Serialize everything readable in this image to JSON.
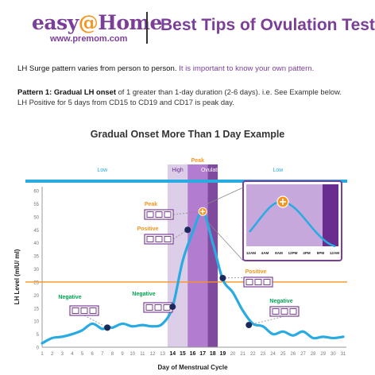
{
  "header": {
    "logo_text_a": "easy",
    "logo_text_at": "@",
    "logo_text_b": "Home",
    "logo_url": "www.premom.com",
    "title": "Best Tips of Ovulation Test"
  },
  "intro": {
    "text": "LH Surge pattern varies from person to person. ",
    "highlight": "It is important to know your own pattern."
  },
  "pattern": {
    "label": "Pattern 1: Gradual LH onset",
    "line1_rest": " of 1 greater than 1-day duration (2-6 days). i.e. See Example below.",
    "line2": "LH Positive for 5 days from CD15 to CD19 and CD17 is peak day."
  },
  "chart_data": {
    "type": "line",
    "title": "Gradual Onset More Than 1 Day Example",
    "xlabel": "Day of Menstrual Cycle",
    "ylabel": "LH Level (mIU/ ml)",
    "xlim": [
      1,
      31
    ],
    "ylim": [
      0,
      60
    ],
    "x_ticks": [
      1,
      2,
      3,
      4,
      5,
      6,
      7,
      8,
      9,
      10,
      11,
      12,
      13,
      14,
      15,
      16,
      17,
      18,
      19,
      20,
      21,
      22,
      23,
      24,
      25,
      26,
      27,
      28,
      29,
      30,
      31
    ],
    "y_ticks": [
      0,
      5,
      10,
      15,
      20,
      25,
      30,
      35,
      40,
      45,
      50,
      55,
      60
    ],
    "highlighted_days": [
      14,
      15,
      16,
      17,
      18,
      19
    ],
    "threshold": 25,
    "series": [
      {
        "color": "#29abe2",
        "x": [
          1,
          2,
          3,
          4,
          5,
          6,
          7,
          7.5,
          8,
          9,
          10,
          11,
          12,
          13,
          14,
          15,
          16,
          17,
          18,
          19,
          20,
          21,
          22,
          23,
          24,
          25,
          26,
          27,
          28,
          29,
          30,
          31
        ],
        "y": [
          1.5,
          3.5,
          4,
          5,
          6.5,
          9,
          7,
          8,
          7.5,
          9,
          8,
          8.5,
          8,
          9,
          15.5,
          33,
          44,
          52,
          40,
          26,
          21,
          14,
          9,
          8,
          5,
          6,
          4.5,
          6,
          3.5,
          4,
          3.5,
          4
        ]
      }
    ],
    "markers": [
      {
        "x": 7.5,
        "y": 7.5,
        "label": "Negative"
      },
      {
        "x": 14,
        "y": 15.5,
        "label": "Negative"
      },
      {
        "x": 15.5,
        "y": 45,
        "label": "Positive"
      },
      {
        "x": 17,
        "y": 52,
        "label": "Peak"
      },
      {
        "x": 19,
        "y": 26.5,
        "label": "Positive"
      },
      {
        "x": 21.6,
        "y": 8.5,
        "label": "Negative"
      }
    ],
    "phases": [
      {
        "label": "Low",
        "from": 1,
        "to": 14
      },
      {
        "label": "High",
        "from": 14,
        "to": 16
      },
      {
        "label": "Peak",
        "from": 16,
        "to": 18
      },
      {
        "label": "Ovulation",
        "from": 18,
        "to": 19
      },
      {
        "label": "Low",
        "from": 19,
        "to": 31
      }
    ],
    "inset": {
      "time_labels": [
        "12AM",
        "4AM",
        "8AM",
        "12PM",
        "4PM",
        "8PM",
        "12AM"
      ]
    },
    "colors": {
      "curve": "#29abe2",
      "threshold": "#f7941d",
      "phase_bar": "#29abe2",
      "high": "#d8c8e6",
      "peak": "#a466c8",
      "ovulation": "#6a2c8e",
      "negative": "#00a651",
      "positive": "#f7941d",
      "strip": "#7b3f98",
      "dot": "#1b2a5c"
    }
  }
}
